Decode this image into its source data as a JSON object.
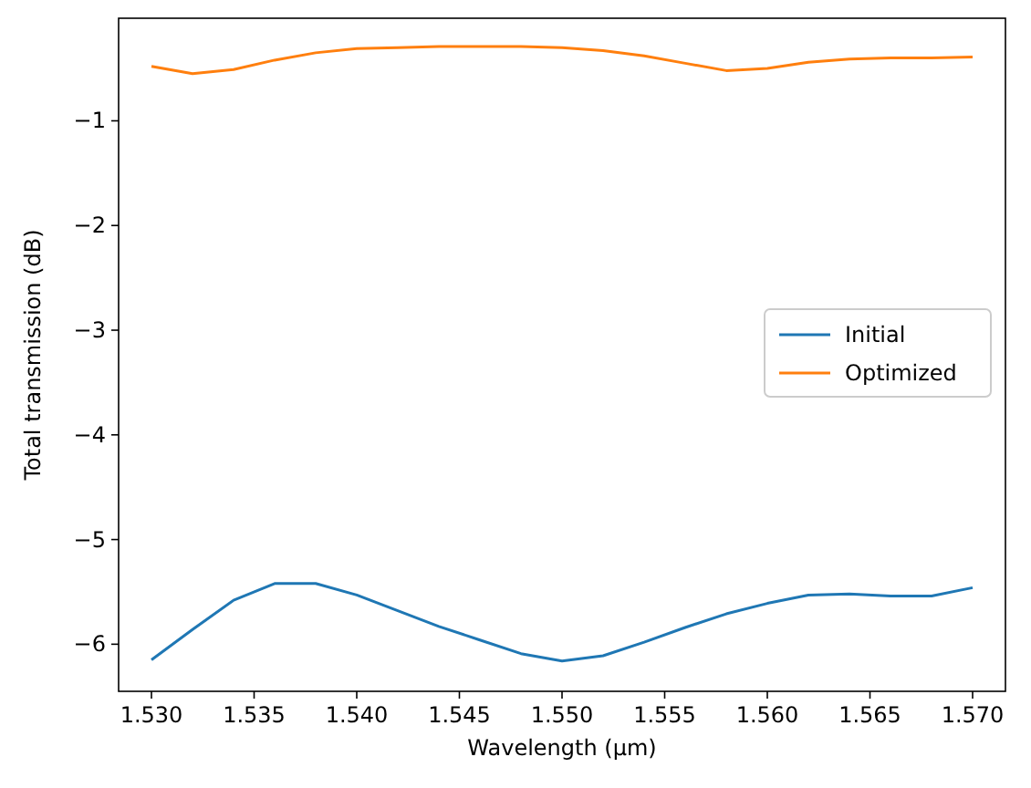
{
  "chart_data": {
    "type": "line",
    "xlabel": "Wavelength (µm)",
    "ylabel": "Total transmission (dB)",
    "x": [
      1.53,
      1.532,
      1.534,
      1.536,
      1.538,
      1.54,
      1.542,
      1.544,
      1.546,
      1.548,
      1.55,
      1.552,
      1.554,
      1.556,
      1.558,
      1.56,
      1.562,
      1.564,
      1.566,
      1.568,
      1.57
    ],
    "series": [
      {
        "name": "Initial",
        "color": "#1f77b4",
        "values": [
          -6.15,
          -5.86,
          -5.58,
          -5.42,
          -5.42,
          -5.53,
          -5.68,
          -5.83,
          -5.96,
          -6.09,
          -6.16,
          -6.11,
          -5.98,
          -5.84,
          -5.71,
          -5.61,
          -5.53,
          -5.52,
          -5.54,
          -5.54,
          -5.46
        ]
      },
      {
        "name": "Optimized",
        "color": "#ff7f0e",
        "values": [
          -0.48,
          -0.55,
          -0.51,
          -0.42,
          -0.35,
          -0.31,
          -0.3,
          -0.29,
          -0.29,
          -0.29,
          -0.3,
          -0.33,
          -0.38,
          -0.45,
          -0.52,
          -0.5,
          -0.44,
          -0.41,
          -0.4,
          -0.4,
          -0.39
        ]
      }
    ],
    "xlim": [
      1.5284,
      1.5716
    ],
    "xticks": [
      {
        "value": 1.53,
        "label": "1.530"
      },
      {
        "value": 1.535,
        "label": "1.535"
      },
      {
        "value": 1.54,
        "label": "1.540"
      },
      {
        "value": 1.545,
        "label": "1.545"
      },
      {
        "value": 1.55,
        "label": "1.550"
      },
      {
        "value": 1.555,
        "label": "1.555"
      },
      {
        "value": 1.56,
        "label": "1.560"
      },
      {
        "value": 1.565,
        "label": "1.565"
      },
      {
        "value": 1.57,
        "label": "1.570"
      }
    ],
    "ylim": [
      -6.45,
      -0.02
    ],
    "yticks": [
      {
        "value": -6,
        "label": "−6"
      },
      {
        "value": -5,
        "label": "−5"
      },
      {
        "value": -4,
        "label": "−4"
      },
      {
        "value": -3,
        "label": "−3"
      },
      {
        "value": -2,
        "label": "−2"
      },
      {
        "value": -1,
        "label": "−1"
      }
    ],
    "legend": "right",
    "grid": false,
    "line_style": "solid"
  }
}
